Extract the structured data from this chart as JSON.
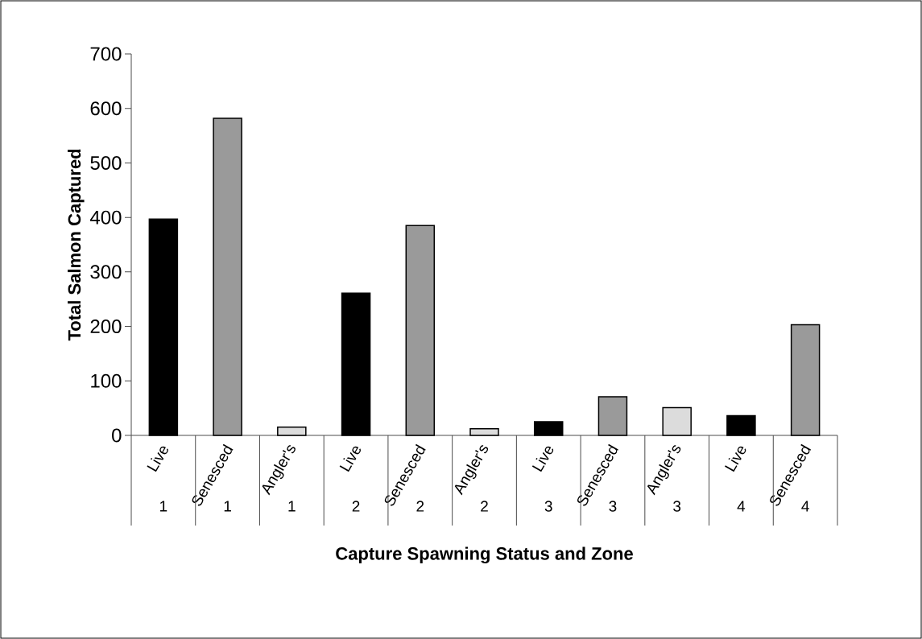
{
  "chart_data": {
    "type": "bar",
    "xlabel": "Capture Spawning Status and Zone",
    "ylabel": "Total Salmon Captured",
    "categories": [
      "Live",
      "Senesced",
      "Angler's",
      "Live",
      "Senesced",
      "Angler's",
      "Live",
      "Senesced",
      "Angler's",
      "Live",
      "Senesced"
    ],
    "values": [
      397,
      582,
      15,
      261,
      385,
      12,
      25,
      71,
      51,
      36,
      203
    ],
    "colors": [
      "#000000",
      "#9a9a9a",
      "#dcdcdc",
      "#000000",
      "#9a9a9a",
      "#dcdcdc",
      "#000000",
      "#9a9a9a",
      "#dcdcdc",
      "#000000",
      "#9a9a9a"
    ],
    "annotations": [
      "1",
      "1",
      "1",
      "2",
      "2",
      "2",
      "3",
      "3",
      "3",
      "4",
      "4"
    ],
    "ylim": [
      0,
      700
    ],
    "yticks": [
      0,
      100,
      200,
      300,
      400,
      500,
      600,
      700
    ],
    "grid": false
  }
}
